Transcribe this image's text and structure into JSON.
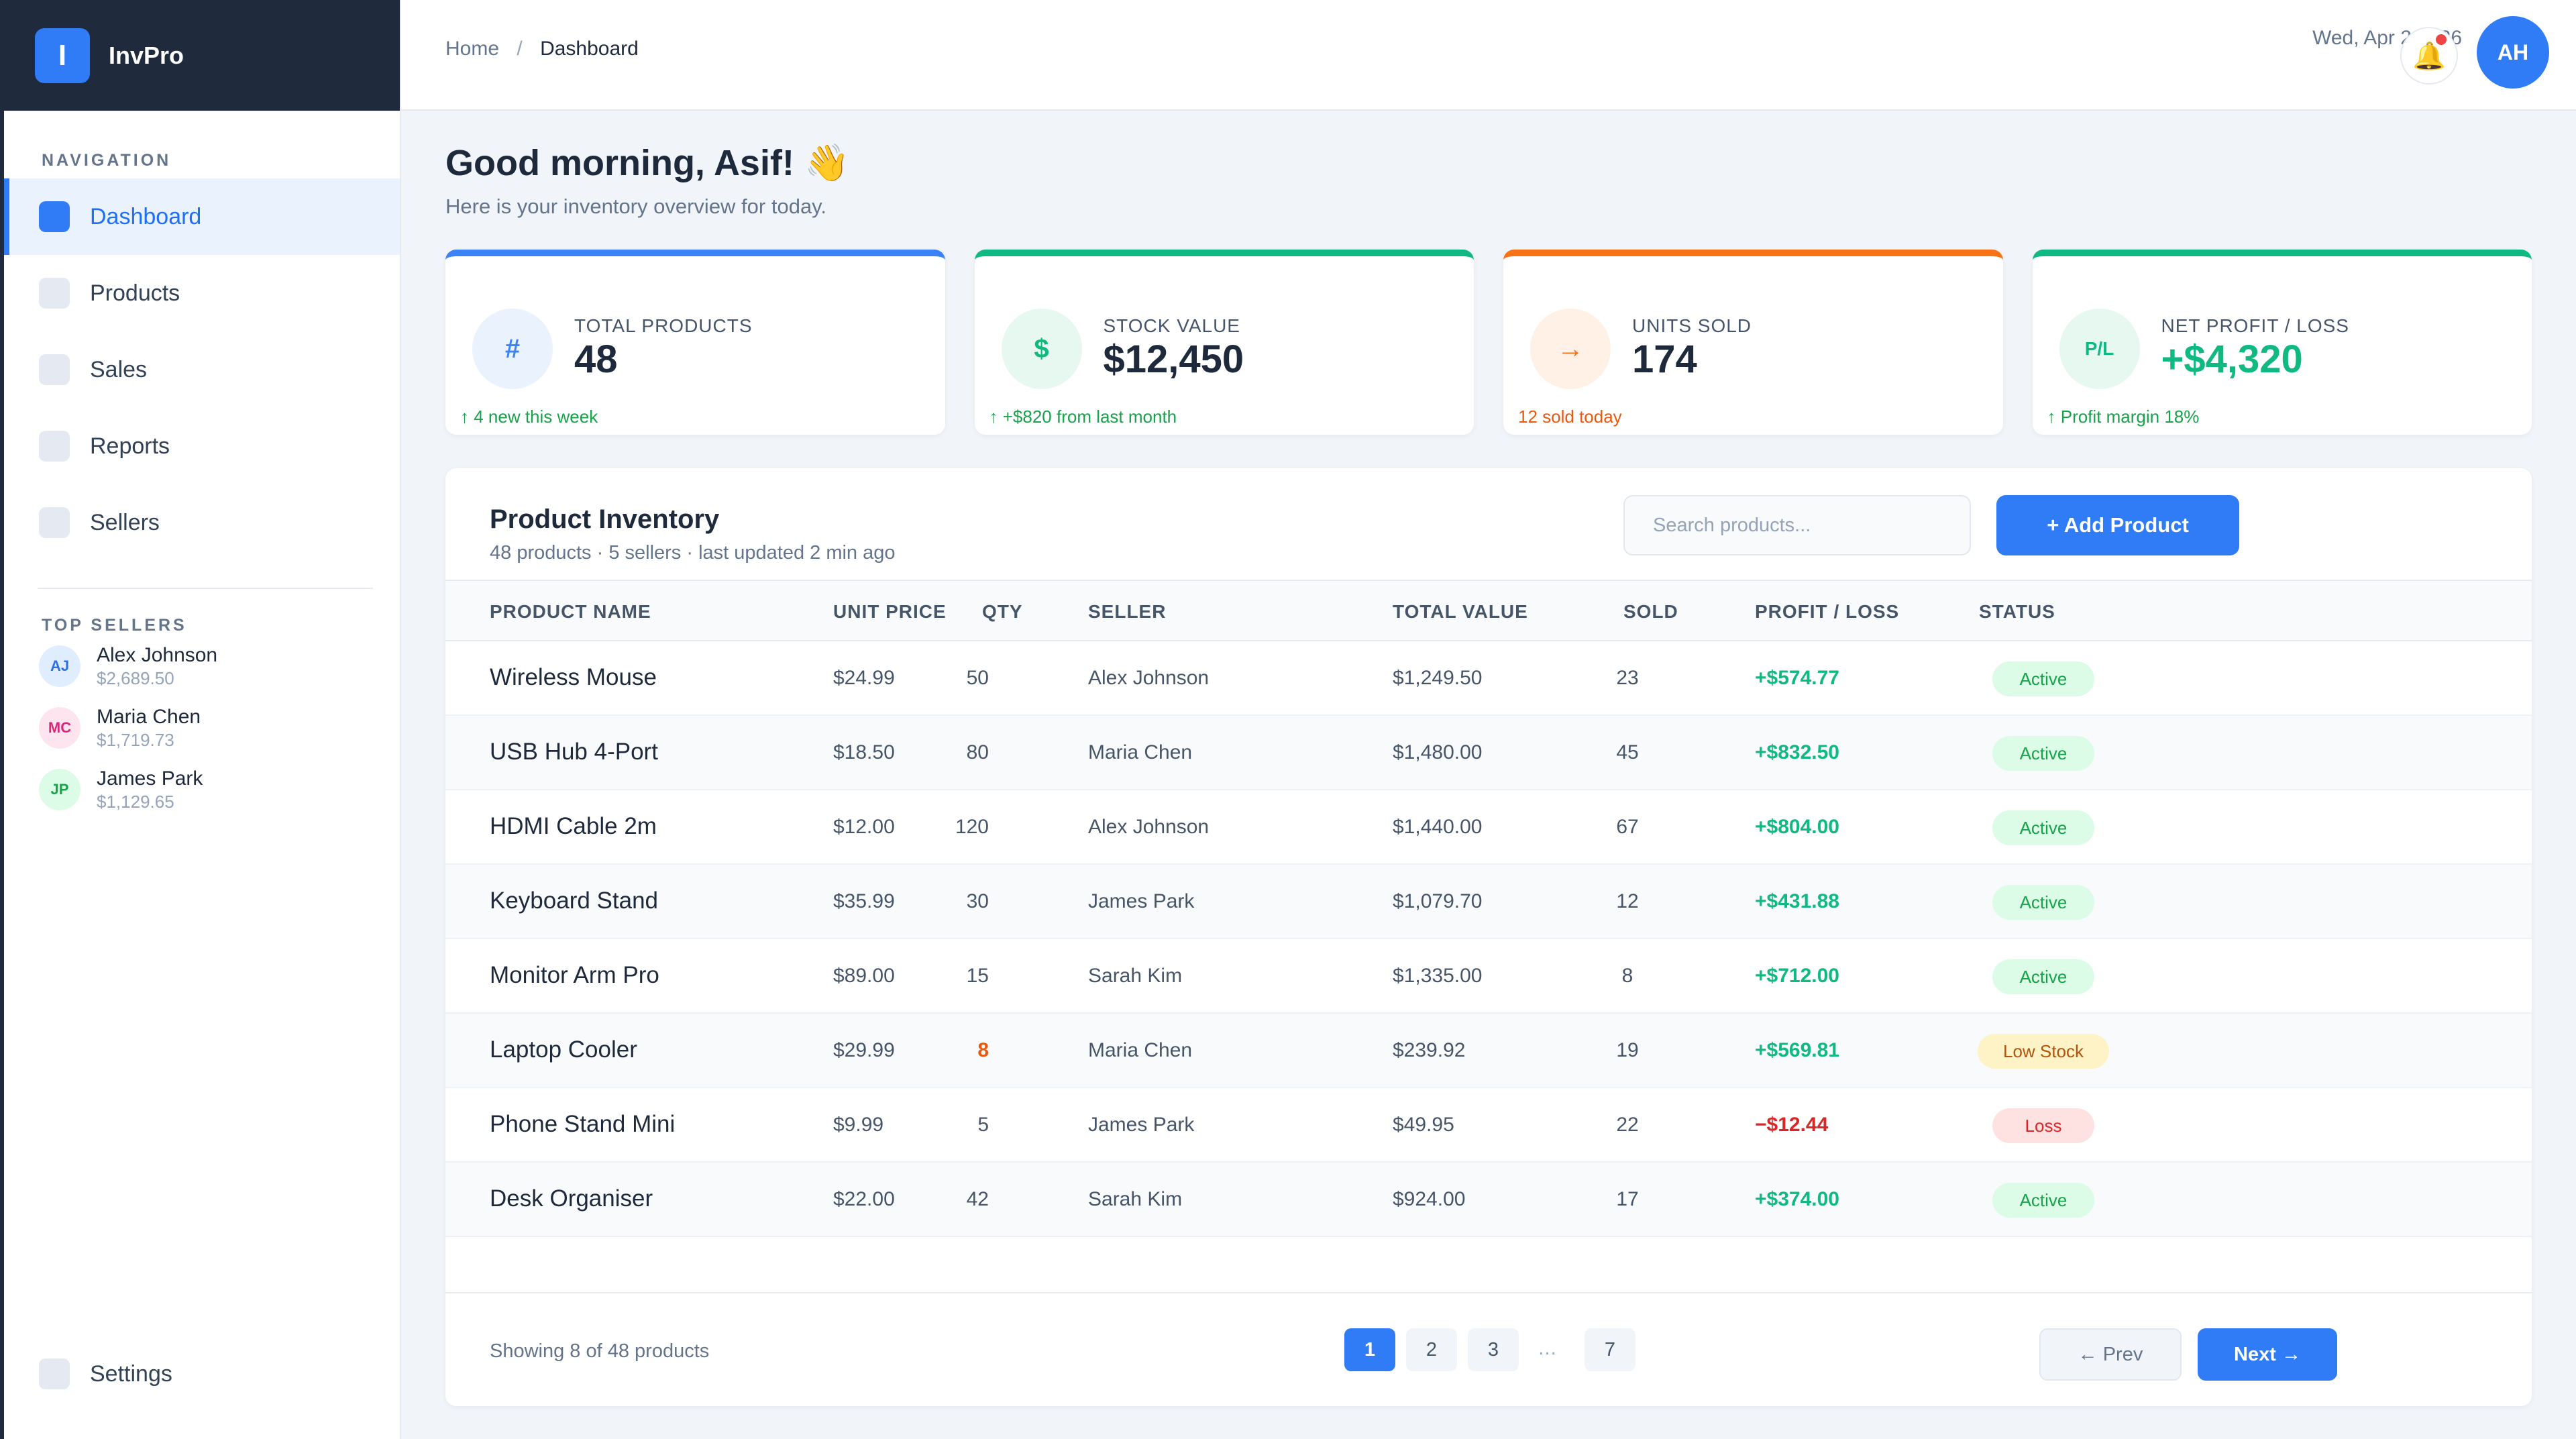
{
  "app": {
    "logo_letter": "I",
    "name": "InvPro"
  },
  "sidebar": {
    "nav_title": "NAVIGATION",
    "items": [
      {
        "label": "Dashboard",
        "active": true
      },
      {
        "label": "Products"
      },
      {
        "label": "Sales"
      },
      {
        "label": "Reports"
      },
      {
        "label": "Sellers"
      }
    ],
    "top_sellers_title": "TOP SELLERS",
    "top_sellers": [
      {
        "initials": "AJ",
        "name": "Alex Johnson",
        "amount": "$2,689.50",
        "bg": "#e0edff",
        "fg": "#2f6fe6"
      },
      {
        "initials": "MC",
        "name": "Maria Chen",
        "amount": "$1,719.73",
        "bg": "#fde4ef",
        "fg": "#db2777"
      },
      {
        "initials": "JP",
        "name": "James Park",
        "amount": "$1,129.65",
        "bg": "#dcfce7",
        "fg": "#16a34a"
      }
    ],
    "settings_label": "Settings"
  },
  "topbar": {
    "breadcrumb": {
      "home": "Home",
      "separator": "/",
      "current": "Dashboard"
    },
    "date": "Wed, Apr 2 2026",
    "bell_icon": "🔔",
    "avatar_initials": "AH"
  },
  "greeting": {
    "title": "Good morning, Asif! 👋",
    "subtitle": "Here is your inventory overview for today."
  },
  "stats": [
    {
      "label": "TOTAL PRODUCTS",
      "value": "48",
      "icon_text": "#",
      "note": "↑ 4 new this week",
      "accent": "#3b82f6",
      "icon_bg": "#eaf2fe",
      "icon_fg": "#3b82f6",
      "note_color": "#16a34a",
      "value_color": "#1e293b"
    },
    {
      "label": "STOCK VALUE",
      "value": "$12,450",
      "icon_text": "$",
      "note": "↑ +$820 from last month",
      "accent": "#10b981",
      "icon_bg": "#e6f8f0",
      "icon_fg": "#10b981",
      "note_color": "#16a34a",
      "value_color": "#1e293b"
    },
    {
      "label": "UNITS SOLD",
      "value": "174",
      "icon_text": "→",
      "note": "12 sold today",
      "accent": "#f97316",
      "icon_bg": "#fff1e6",
      "icon_fg": "#f97316",
      "note_color": "#ea580c",
      "value_color": "#1e293b"
    },
    {
      "label": "NET PROFIT / LOSS",
      "value": "+$4,320",
      "icon_text": "P/L",
      "note": "↑ Profit margin 18%",
      "accent": "#10b981",
      "icon_bg": "#e6f8f0",
      "icon_fg": "#10b981",
      "note_color": "#16a34a",
      "value_color": "#10b981"
    }
  ],
  "inventory": {
    "title": "Product Inventory",
    "subtitle": "48 products · 5 sellers · last updated 2 min ago",
    "search_placeholder": "Search products...",
    "add_button": "+ Add Product",
    "columns": [
      "PRODUCT NAME",
      "UNIT PRICE",
      "QTY",
      "SELLER",
      "TOTAL VALUE",
      "SOLD",
      "PROFIT / LOSS",
      "STATUS"
    ],
    "rows": [
      {
        "name": "Wireless Mouse",
        "price": "$24.99",
        "qty": "50",
        "seller": "Alex Johnson",
        "total": "$1,249.50",
        "sold": "23",
        "pl": "+$574.77",
        "status": "Active"
      },
      {
        "name": "USB Hub 4-Port",
        "price": "$18.50",
        "qty": "80",
        "seller": "Maria Chen",
        "total": "$1,480.00",
        "sold": "45",
        "pl": "+$832.50",
        "status": "Active"
      },
      {
        "name": "HDMI Cable 2m",
        "price": "$12.00",
        "qty": "120",
        "seller": "Alex Johnson",
        "total": "$1,440.00",
        "sold": "67",
        "pl": "+$804.00",
        "status": "Active"
      },
      {
        "name": "Keyboard Stand",
        "price": "$35.99",
        "qty": "30",
        "seller": "James Park",
        "total": "$1,079.70",
        "sold": "12",
        "pl": "+$431.88",
        "status": "Active"
      },
      {
        "name": "Monitor Arm Pro",
        "price": "$89.00",
        "qty": "15",
        "seller": "Sarah Kim",
        "total": "$1,335.00",
        "sold": "8",
        "pl": "+$712.00",
        "status": "Active"
      },
      {
        "name": "Laptop Cooler",
        "price": "$29.99",
        "qty": "8",
        "seller": "Maria Chen",
        "total": "$239.92",
        "sold": "19",
        "pl": "+$569.81",
        "status": "Low Stock"
      },
      {
        "name": "Phone Stand Mini",
        "price": "$9.99",
        "qty": "5",
        "seller": "James Park",
        "total": "$49.95",
        "sold": "22",
        "pl": "−$12.44",
        "status": "Loss"
      },
      {
        "name": "Desk Organiser",
        "price": "$22.00",
        "qty": "42",
        "seller": "Sarah Kim",
        "total": "$924.00",
        "sold": "17",
        "pl": "+$374.00",
        "status": "Active"
      }
    ],
    "status_styles": {
      "Active": {
        "bg": "#dcfce7",
        "fg": "#16a34a"
      },
      "Low Stock": {
        "bg": "#fef3c7",
        "fg": "#b45309"
      },
      "Loss": {
        "bg": "#fee2e2",
        "fg": "#dc2626"
      }
    },
    "colors": {
      "profit": "#10b981",
      "loss": "#dc2626",
      "low_qty": "#ea580c"
    },
    "footer": {
      "showing": "Showing 8 of 48 products",
      "pages": [
        "1",
        "2",
        "3",
        "7"
      ],
      "active_page": "1",
      "ellipsis": "…",
      "prev": "← Prev",
      "next": "Next →"
    }
  }
}
